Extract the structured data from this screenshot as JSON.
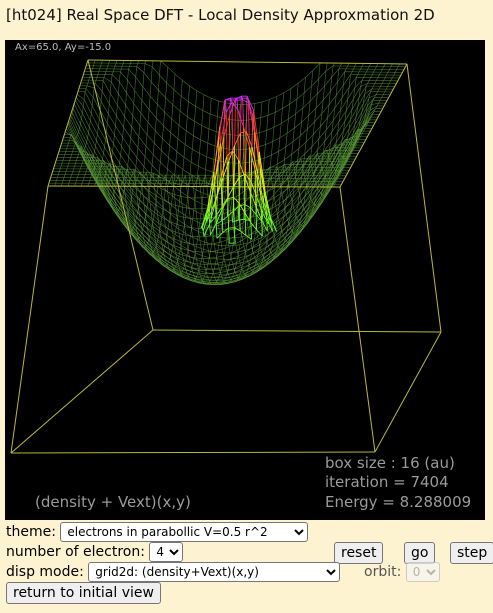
{
  "window": {
    "title": "[ht024] Real Space DFT - Local Density Approxmation 2D"
  },
  "canvas": {
    "angle_readout": "Ax=65.0, Ay=-15.0",
    "box_size": "box size : 16 (au)",
    "iteration": "iteration = 7404",
    "energy": "Energy = 8.288009",
    "plot_label": "(density + Vext)(x,y)"
  },
  "controls": {
    "theme_label": "theme:",
    "theme_value": "electrons in parabollic V=0.5 r^2",
    "electron_label": "number of electron:",
    "electron_value": "4",
    "reset_label": "reset",
    "go_label": "go",
    "step_label": "step",
    "disp_label": "disp mode:",
    "disp_value": "grid2d: (density+Vext)(x,y)",
    "orbit_label": "orbit:",
    "orbit_value": "0",
    "return_label": "return to initial view"
  },
  "colors": {
    "background": "#fdf3d0",
    "box_lines": "#b8b83a",
    "potential_mesh": "#5a9a3a",
    "density_low": "#33ff33",
    "density_mid": "#ff2a2a",
    "density_high": "#cc33ff"
  }
}
